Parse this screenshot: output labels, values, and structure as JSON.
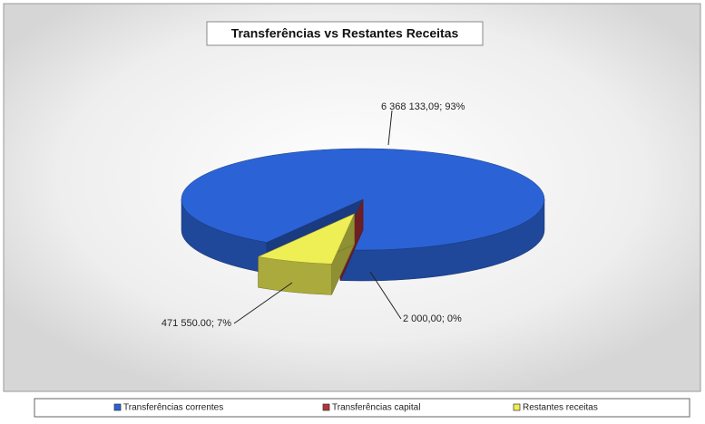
{
  "chart_data": {
    "type": "pie",
    "title": "Transferências vs Restantes Receitas",
    "labels": [
      "Transferências correntes",
      "Transferências capital",
      "Restantes receitas"
    ],
    "values": [
      6368133.09,
      2000,
      471550
    ],
    "value_labels": [
      "6 368 133,09; 93%",
      "2 000,00; 0%",
      "471 550.00; 7%"
    ],
    "colors": [
      "#2b63d6",
      "#b8333a",
      "#eeee55"
    ],
    "legend": "bottom"
  }
}
